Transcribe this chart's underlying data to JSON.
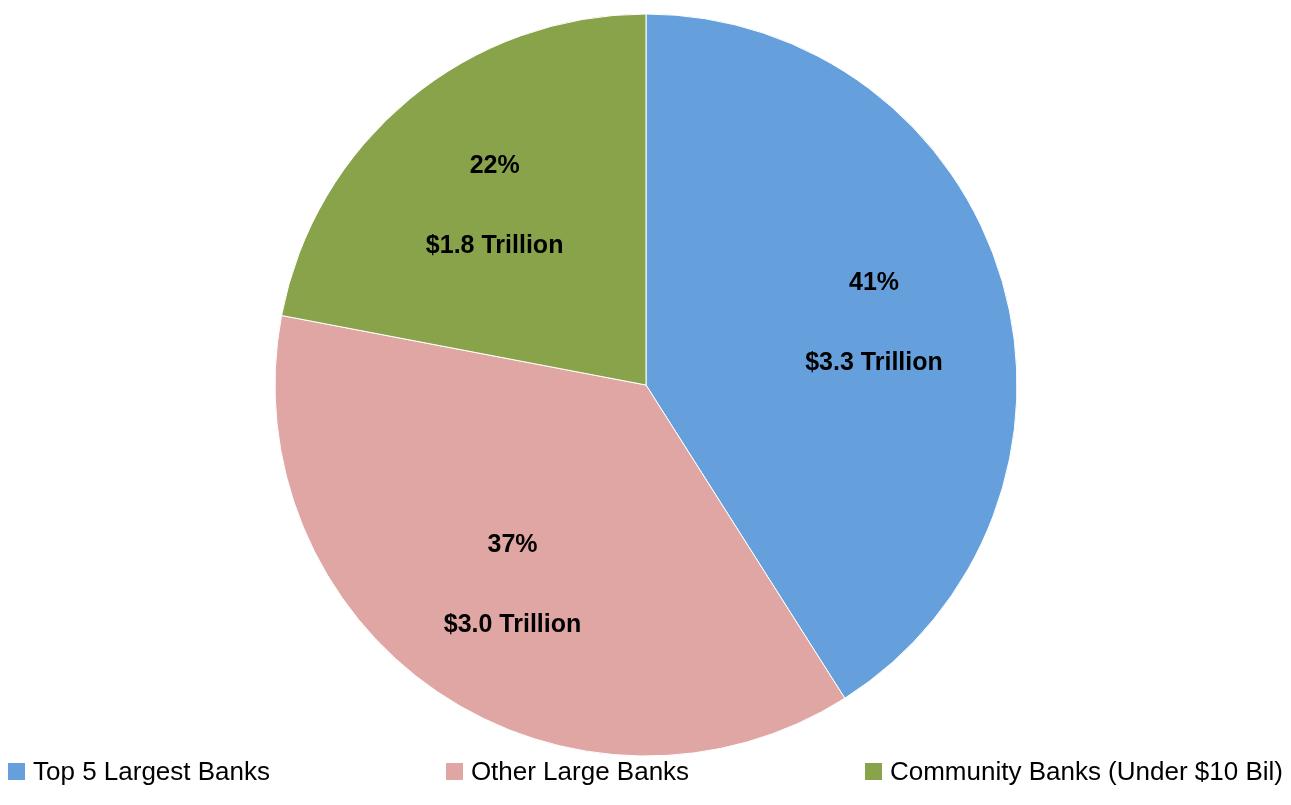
{
  "chart_data": {
    "type": "pie",
    "categories": [
      "Top 5 Largest Banks",
      "Other Large Banks",
      "Community Banks (Under $10 Bil)"
    ],
    "values": [
      41,
      37,
      22
    ],
    "colors": [
      "#65a0dc",
      "#e0a6a3",
      "#89a34b"
    ],
    "value_labels": [
      "41%",
      "37%",
      "22%"
    ],
    "annotations": [
      {
        "text": "$3.3 Trillion",
        "x": "Top 5 Largest Banks"
      },
      {
        "text": "$3.0 Trillion",
        "x": "Other Large Banks"
      },
      {
        "text": "$1.8 Trillion",
        "x": "Community Banks (Under $10 Bil)"
      }
    ],
    "legend": "bottom"
  }
}
